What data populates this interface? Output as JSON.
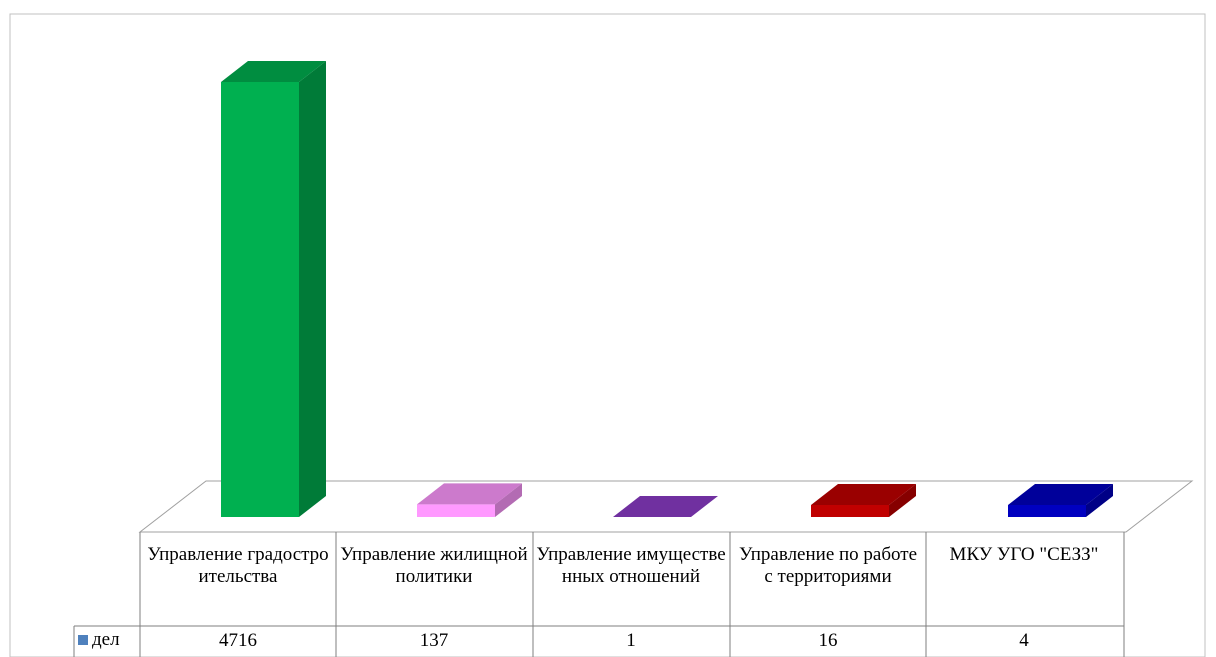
{
  "chart_data": {
    "type": "bar",
    "title": "",
    "categories": [
      "Управление градостроительства",
      "Управление жилищной политики",
      "Управление имущественных отношений",
      "Управление по работе с территориями",
      "МКУ УГО \"СЕЗЗ\""
    ],
    "series": [
      {
        "name": "дел",
        "values": [
          4716,
          137,
          1,
          16,
          4
        ]
      }
    ],
    "bar_colors": [
      "#00b050",
      "#ff99ff",
      "#7030a0",
      "#c00000",
      "#0000c0"
    ],
    "legend_color": "#4f81bd",
    "data_table": true,
    "ylim": [
      0,
      4716
    ]
  }
}
